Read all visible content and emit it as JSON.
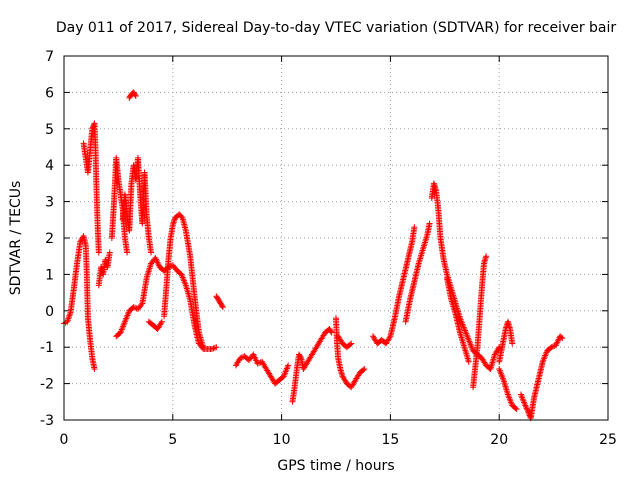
{
  "chart_data": {
    "type": "scatter",
    "title": "Day 011 of 2017, Sidereal Day-to-day VTEC variation (SDTVAR) for receiver bair",
    "xlabel": "GPS time / hours",
    "ylabel": "SDTVAR / TECUs",
    "xlim": [
      0,
      25
    ],
    "ylim": [
      -3,
      7
    ],
    "xticks": [
      0,
      5,
      10,
      15,
      20,
      25
    ],
    "xtick_labels": [
      "0",
      "5",
      "10",
      "15",
      "20",
      "25"
    ],
    "yticks": [
      -3,
      -2,
      -1,
      0,
      1,
      2,
      3,
      4,
      5,
      6,
      7
    ],
    "ytick_labels": [
      "-3",
      "-2",
      "-1",
      "0",
      "1",
      "2",
      "3",
      "4",
      "5",
      "6",
      "7"
    ],
    "grid": true,
    "marker": "plus",
    "series": [
      {
        "name": "SDTVAR",
        "color": "#ff0000",
        "segments": [
          [
            [
              0.0,
              -0.35
            ],
            [
              0.15,
              -0.3
            ],
            [
              0.3,
              -0.05
            ],
            [
              0.45,
              0.6
            ],
            [
              0.6,
              1.3
            ],
            [
              0.75,
              1.9
            ],
            [
              0.9,
              2.05
            ],
            [
              1.0,
              1.8
            ],
            [
              1.05,
              1.0
            ],
            [
              1.1,
              -0.2
            ],
            [
              1.2,
              -0.8
            ],
            [
              1.3,
              -1.3
            ],
            [
              1.4,
              -1.6
            ]
          ],
          [
            [
              0.9,
              4.6
            ],
            [
              1.0,
              4.2
            ],
            [
              1.1,
              3.8
            ],
            [
              1.2,
              4.4
            ],
            [
              1.3,
              5.0
            ],
            [
              1.4,
              5.15
            ],
            [
              1.45,
              4.4
            ],
            [
              1.5,
              3.2
            ],
            [
              1.55,
              2.3
            ],
            [
              1.6,
              1.6
            ]
          ],
          [
            [
              1.6,
              0.7
            ],
            [
              1.7,
              1.2
            ],
            [
              1.8,
              1.0
            ],
            [
              1.9,
              1.4
            ],
            [
              2.0,
              1.2
            ],
            [
              2.1,
              1.6
            ]
          ],
          [
            [
              2.2,
              2.0
            ],
            [
              2.3,
              3.0
            ],
            [
              2.4,
              4.2
            ],
            [
              2.5,
              3.6
            ],
            [
              2.6,
              3.2
            ],
            [
              2.7,
              2.8
            ],
            [
              2.8,
              2.0
            ],
            [
              2.9,
              1.6
            ]
          ],
          [
            [
              2.4,
              -0.7
            ],
            [
              2.6,
              -0.6
            ],
            [
              2.8,
              -0.3
            ],
            [
              3.0,
              0.0
            ],
            [
              3.2,
              0.1
            ],
            [
              3.4,
              0.05
            ],
            [
              3.6,
              0.2
            ],
            [
              3.8,
              0.9
            ],
            [
              4.0,
              1.3
            ],
            [
              4.2,
              1.45
            ],
            [
              4.4,
              1.2
            ],
            [
              4.6,
              1.1
            ],
            [
              4.8,
              1.2
            ],
            [
              5.0,
              1.25
            ],
            [
              5.2,
              1.1
            ],
            [
              5.4,
              1.0
            ],
            [
              5.6,
              0.7
            ],
            [
              5.8,
              0.3
            ],
            [
              6.0,
              -0.4
            ],
            [
              6.2,
              -0.9
            ],
            [
              6.4,
              -1.05
            ],
            [
              6.6,
              -1.05
            ],
            [
              6.8,
              -1.05
            ],
            [
              7.0,
              -1.0
            ]
          ],
          [
            [
              2.7,
              2.5
            ],
            [
              2.8,
              3.2
            ],
            [
              2.9,
              2.6
            ],
            [
              3.0,
              2.2
            ],
            [
              3.1,
              3.5
            ],
            [
              3.2,
              4.0
            ],
            [
              3.3,
              3.6
            ],
            [
              3.4,
              4.2
            ],
            [
              3.5,
              3.2
            ],
            [
              3.6,
              2.4
            ],
            [
              3.7,
              3.8
            ],
            [
              3.8,
              2.6
            ],
            [
              3.9,
              2.0
            ],
            [
              4.0,
              1.6
            ]
          ],
          [
            [
              3.0,
              5.85
            ],
            [
              3.1,
              5.95
            ],
            [
              3.2,
              6.0
            ],
            [
              3.3,
              5.9
            ]
          ],
          [
            [
              3.9,
              -0.3
            ],
            [
              4.1,
              -0.4
            ],
            [
              4.3,
              -0.5
            ],
            [
              4.5,
              -0.3
            ]
          ],
          [
            [
              4.6,
              -0.15
            ],
            [
              4.7,
              0.6
            ],
            [
              4.8,
              1.4
            ],
            [
              4.9,
              2.0
            ],
            [
              5.0,
              2.35
            ],
            [
              5.1,
              2.55
            ],
            [
              5.2,
              2.6
            ],
            [
              5.3,
              2.65
            ],
            [
              5.45,
              2.55
            ],
            [
              5.6,
              2.2
            ],
            [
              5.8,
              1.5
            ],
            [
              6.0,
              0.4
            ],
            [
              6.2,
              -0.6
            ],
            [
              6.4,
              -1.0
            ]
          ],
          [
            [
              7.0,
              0.4
            ],
            [
              7.1,
              0.3
            ],
            [
              7.2,
              0.2
            ],
            [
              7.3,
              0.1
            ]
          ],
          [
            [
              7.9,
              -1.5
            ],
            [
              8.1,
              -1.3
            ],
            [
              8.3,
              -1.25
            ],
            [
              8.5,
              -1.35
            ],
            [
              8.7,
              -1.2
            ],
            [
              8.9,
              -1.45
            ],
            [
              9.1,
              -1.4
            ],
            [
              9.3,
              -1.6
            ],
            [
              9.5,
              -1.8
            ],
            [
              9.7,
              -2.0
            ],
            [
              9.9,
              -1.9
            ],
            [
              10.1,
              -1.8
            ],
            [
              10.3,
              -1.5
            ]
          ],
          [
            [
              10.5,
              -2.5
            ],
            [
              10.6,
              -2.1
            ],
            [
              10.7,
              -1.6
            ],
            [
              10.8,
              -1.2
            ],
            [
              10.9,
              -1.3
            ],
            [
              11.0,
              -1.6
            ],
            [
              11.2,
              -1.4
            ],
            [
              11.4,
              -1.2
            ],
            [
              11.6,
              -1.0
            ],
            [
              11.8,
              -0.8
            ],
            [
              12.0,
              -0.6
            ],
            [
              12.2,
              -0.5
            ],
            [
              12.3,
              -0.6
            ]
          ],
          [
            [
              12.5,
              -0.2
            ],
            [
              12.55,
              -0.9
            ],
            [
              12.6,
              -1.3
            ],
            [
              12.7,
              -1.6
            ],
            [
              12.8,
              -1.8
            ],
            [
              13.0,
              -2.0
            ],
            [
              13.2,
              -2.1
            ],
            [
              13.4,
              -1.9
            ],
            [
              13.6,
              -1.7
            ],
            [
              13.8,
              -1.6
            ]
          ],
          [
            [
              12.6,
              -0.7
            ],
            [
              12.8,
              -0.9
            ],
            [
              13.0,
              -1.0
            ],
            [
              13.2,
              -0.9
            ]
          ],
          [
            [
              14.2,
              -0.7
            ],
            [
              14.4,
              -0.9
            ],
            [
              14.6,
              -0.8
            ],
            [
              14.8,
              -0.9
            ],
            [
              15.0,
              -0.7
            ],
            [
              15.2,
              -0.2
            ],
            [
              15.4,
              0.4
            ],
            [
              15.6,
              0.9
            ],
            [
              15.8,
              1.4
            ],
            [
              16.0,
              1.9
            ],
            [
              16.1,
              2.3
            ]
          ],
          [
            [
              15.7,
              -0.3
            ],
            [
              15.9,
              0.3
            ],
            [
              16.1,
              0.8
            ],
            [
              16.3,
              1.3
            ],
            [
              16.5,
              1.7
            ],
            [
              16.7,
              2.1
            ],
            [
              16.8,
              2.4
            ]
          ],
          [
            [
              16.9,
              3.1
            ],
            [
              17.0,
              3.5
            ],
            [
              17.1,
              3.3
            ],
            [
              17.2,
              2.8
            ],
            [
              17.3,
              2.0
            ],
            [
              17.45,
              1.4
            ],
            [
              17.6,
              1.0
            ],
            [
              17.8,
              0.6
            ],
            [
              18.0,
              0.2
            ],
            [
              18.2,
              -0.2
            ],
            [
              18.4,
              -0.5
            ],
            [
              18.6,
              -0.8
            ],
            [
              18.8,
              -1.1
            ],
            [
              19.0,
              -1.2
            ],
            [
              19.2,
              -1.3
            ],
            [
              19.4,
              -1.5
            ],
            [
              19.6,
              -1.6
            ],
            [
              19.8,
              -1.2
            ],
            [
              20.0,
              -1.0
            ]
          ],
          [
            [
              17.6,
              0.9
            ],
            [
              17.8,
              0.3
            ],
            [
              18.0,
              -0.1
            ],
            [
              18.2,
              -0.6
            ],
            [
              18.4,
              -1.0
            ],
            [
              18.6,
              -1.4
            ]
          ],
          [
            [
              18.8,
              -2.1
            ],
            [
              19.0,
              -1.0
            ],
            [
              19.1,
              -0.2
            ],
            [
              19.2,
              0.6
            ],
            [
              19.3,
              1.3
            ],
            [
              19.4,
              1.5
            ]
          ],
          [
            [
              20.0,
              -1.4
            ],
            [
              20.1,
              -1.1
            ],
            [
              20.3,
              -0.5
            ],
            [
              20.4,
              -0.3
            ],
            [
              20.5,
              -0.5
            ],
            [
              20.6,
              -0.9
            ]
          ],
          [
            [
              20.0,
              -1.6
            ],
            [
              20.2,
              -1.9
            ],
            [
              20.4,
              -2.3
            ],
            [
              20.6,
              -2.6
            ],
            [
              20.8,
              -2.7
            ]
          ],
          [
            [
              21.0,
              -2.3
            ],
            [
              21.2,
              -2.6
            ],
            [
              21.35,
              -2.8
            ],
            [
              21.45,
              -2.95
            ],
            [
              21.6,
              -2.4
            ],
            [
              21.8,
              -1.9
            ],
            [
              22.0,
              -1.4
            ],
            [
              22.2,
              -1.1
            ],
            [
              22.4,
              -1.0
            ],
            [
              22.6,
              -0.95
            ],
            [
              22.8,
              -0.7
            ],
            [
              22.9,
              -0.75
            ]
          ]
        ]
      }
    ]
  }
}
